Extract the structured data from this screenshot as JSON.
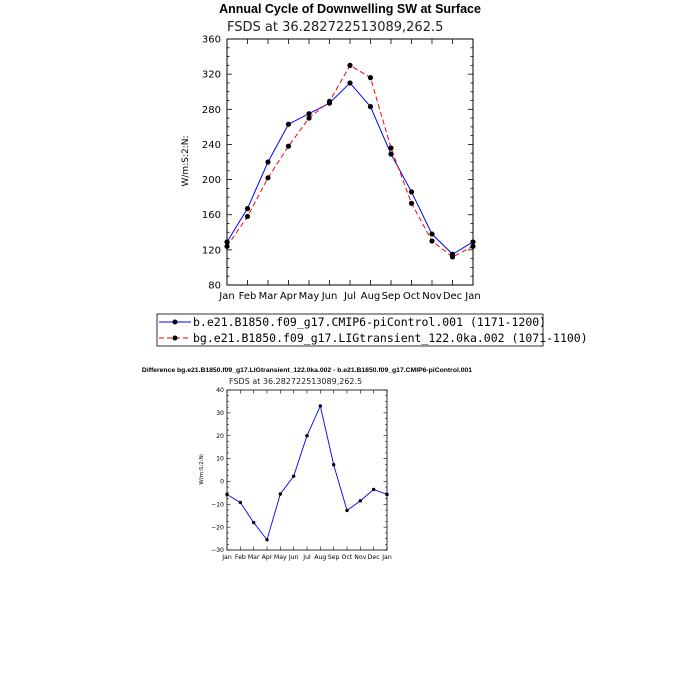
{
  "chart_data": [
    {
      "type": "line",
      "title": "Annual Cycle of Downwelling SW at Surface",
      "subtitle": "FSDS at 36.282722513089,262.5",
      "xlabel": "",
      "ylabel": "W/m:S:2:N:",
      "categories": [
        "Jan",
        "Feb",
        "Mar",
        "Apr",
        "May",
        "Jun",
        "Jul",
        "Aug",
        "Sep",
        "Oct",
        "Nov",
        "Dec",
        "Jan"
      ],
      "ylim": [
        80,
        360
      ],
      "yticks": [
        80,
        120,
        160,
        200,
        240,
        280,
        320,
        360
      ],
      "series": [
        {
          "name": "b.e21.B1850.f09_g17.CMIP6-piControl.001 (1171-1200)",
          "color": "#0000ff",
          "dash": "solid",
          "values": [
            129,
            167,
            220,
            263,
            275,
            287,
            310,
            283,
            229,
            186,
            138,
            115,
            129
          ]
        },
        {
          "name": "bg.e21.B1850.f09_g17.LIGtransient_122.0ka.002 (1071-1100)",
          "color": "#ff0000",
          "dash": "dashed",
          "values": [
            124,
            158,
            202,
            238,
            270,
            289,
            330,
            316,
            236,
            173,
            130,
            112,
            124
          ]
        }
      ]
    },
    {
      "type": "line",
      "title": "Difference bg.e21.B1850.f09_g17.LIGtransient_122.0ka.002 - b.e21.B1850.f09_g17.CMIP6-piControl.001",
      "subtitle": "FSDS at 36.282722513089,262.5",
      "xlabel": "",
      "ylabel": "W/m:S:2:N:",
      "categories": [
        "Jan",
        "Feb",
        "Mar",
        "Apr",
        "May",
        "Jun",
        "Jul",
        "Aug",
        "Sep",
        "Oct",
        "Nov",
        "Dec",
        "Jan"
      ],
      "ylim": [
        -30,
        40
      ],
      "yticks": [
        -30,
        -20,
        -10,
        0,
        10,
        20,
        30,
        40
      ],
      "series": [
        {
          "name": "Difference",
          "color": "#0000ff",
          "dash": "solid",
          "values": [
            -5.7,
            -9.2,
            -18,
            -25.5,
            -5.5,
            2.3,
            20,
            33,
            7.3,
            -12.7,
            -8.5,
            -3.5,
            -5.7
          ]
        }
      ]
    }
  ]
}
